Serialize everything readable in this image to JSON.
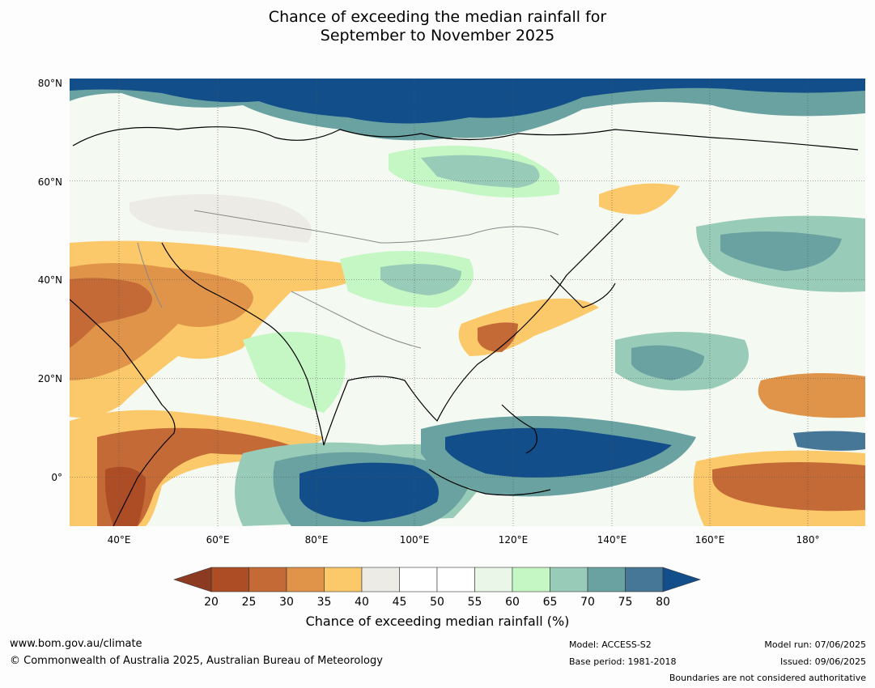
{
  "title": {
    "line1": "Chance of exceeding the median rainfall for",
    "line2": "September to November 2025"
  },
  "map": {
    "lat_labels": [
      "80°N",
      "60°N",
      "40°N",
      "20°N",
      "0°"
    ],
    "lon_labels": [
      "40°E",
      "60°E",
      "80°E",
      "100°E",
      "120°E",
      "140°E",
      "160°E",
      "180°"
    ]
  },
  "colorbar": {
    "label": "Chance of exceeding median rainfall (%)",
    "ticks": [
      "20",
      "25",
      "30",
      "35",
      "40",
      "45",
      "50",
      "55",
      "60",
      "65",
      "70",
      "75",
      "80"
    ],
    "colors": [
      "#ad4d26",
      "#c46a37",
      "#e0944a",
      "#fcc96a",
      "#ecebe6",
      "#ffffff",
      "#ffffff",
      "#e9f6e8",
      "#c5f7c5",
      "#98ccb8",
      "#6aa1a1",
      "#477796"
    ],
    "under_color": "#8d3a22",
    "over_color": "#124e8a"
  },
  "footer": {
    "website": "www.bom.gov.au/climate",
    "copyright": "© Commonwealth of Australia 2025, Australian Bureau of Meteorology",
    "model": "Model: ACCESS-S2",
    "base_period": "Base period: 1981-2018",
    "model_run": "Model run: 07/06/2025",
    "issued": "Issued: 09/06/2025",
    "boundaries_note": "Boundaries are not considered authoritative"
  }
}
